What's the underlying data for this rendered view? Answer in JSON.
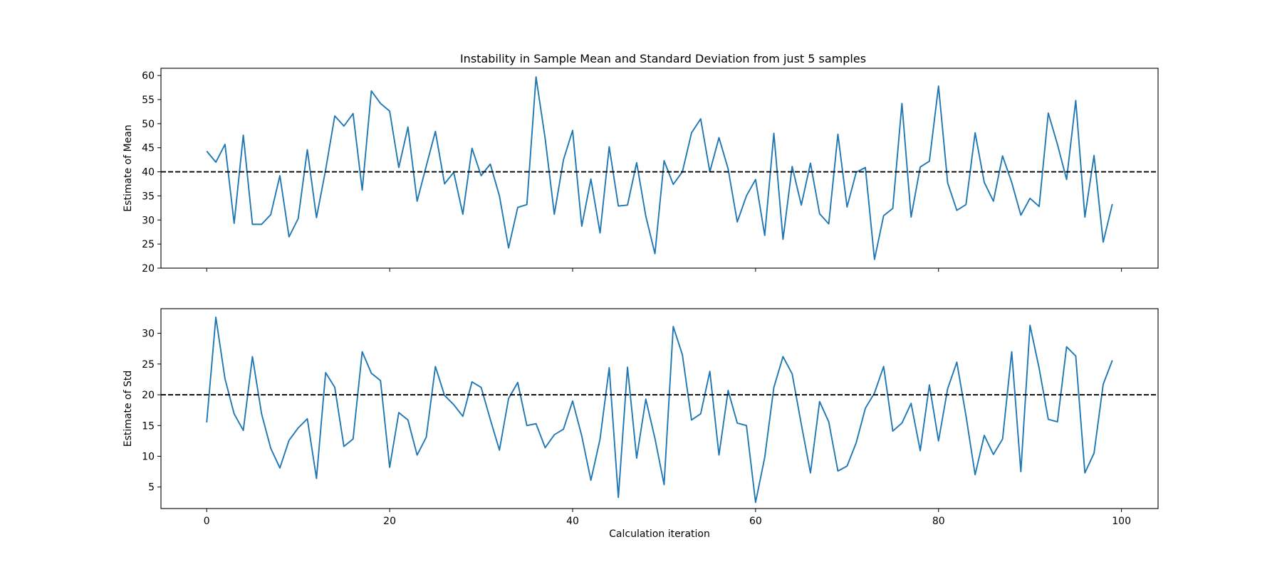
{
  "title": "Instability in Sample Mean and Standard Deviation from just 5 samples",
  "colors": {
    "line": "#1f77b4",
    "reference": "#000000",
    "axes": "#000000",
    "background": "#ffffff"
  },
  "chart_data": [
    {
      "type": "line",
      "title": "Instability in Sample Mean and Standard Deviation from just 5 samples",
      "xlabel": "",
      "ylabel": "Estimate of Mean",
      "xlim": [
        -5,
        104
      ],
      "ylim": [
        20,
        61.5
      ],
      "yticks": [
        20,
        25,
        30,
        35,
        40,
        45,
        50,
        55,
        60
      ],
      "xticks": [
        0,
        20,
        40,
        60,
        80,
        100
      ],
      "show_xtick_labels": false,
      "grid": false,
      "reference_line": {
        "y": 40,
        "style": "dashed",
        "color": "#000000"
      },
      "series": [
        {
          "color": "#1f77b4",
          "values": [
            44.3,
            42.0,
            45.7,
            29.3,
            47.6,
            29.1,
            29.1,
            31.1,
            39.2,
            26.5,
            30.3,
            44.6,
            30.5,
            40.4,
            51.6,
            49.5,
            52.1,
            36.2,
            56.8,
            54.2,
            52.6,
            40.9,
            49.3,
            33.9,
            41.2,
            48.4,
            37.5,
            39.9,
            31.2,
            44.9,
            39.2,
            41.6,
            35.0,
            24.2,
            32.6,
            33.2,
            59.7,
            46.9,
            31.2,
            42.5,
            48.6,
            28.7,
            38.5,
            27.3,
            45.2,
            32.9,
            33.1,
            41.9,
            30.8,
            23.0,
            42.3,
            37.4,
            40.0,
            48.1,
            51.0,
            40.0,
            47.1,
            40.6,
            29.6,
            35.0,
            38.4,
            26.8,
            48.0,
            26.0,
            41.1,
            33.1,
            41.8,
            31.3,
            29.2,
            47.8,
            32.7,
            39.9,
            40.9,
            21.8,
            30.9,
            32.4,
            54.2,
            30.6,
            41.0,
            42.2,
            57.8,
            37.7,
            32.0,
            33.2,
            48.1,
            37.8,
            33.9,
            43.3,
            37.8,
            31.0,
            34.5,
            32.8,
            52.2,
            45.7,
            38.4,
            54.8,
            30.6,
            43.4,
            25.4,
            33.3
          ]
        }
      ]
    },
    {
      "type": "line",
      "xlabel": "Calculation iteration",
      "ylabel": "Estimate of Std",
      "xlim": [
        -5,
        104
      ],
      "ylim": [
        1.5,
        34
      ],
      "yticks": [
        5,
        10,
        15,
        20,
        25,
        30
      ],
      "xticks": [
        0,
        20,
        40,
        60,
        80,
        100
      ],
      "show_xtick_labels": true,
      "grid": false,
      "reference_line": {
        "y": 20,
        "style": "dashed",
        "color": "#000000"
      },
      "series": [
        {
          "color": "#1f77b4",
          "values": [
            15.5,
            32.6,
            22.6,
            16.9,
            14.2,
            26.2,
            16.9,
            11.3,
            8.1,
            12.6,
            14.6,
            16.1,
            6.4,
            23.6,
            21.2,
            11.6,
            12.8,
            27.0,
            23.5,
            22.3,
            8.2,
            17.1,
            15.9,
            10.2,
            13.1,
            24.6,
            19.9,
            18.4,
            16.5,
            22.1,
            21.2,
            16.0,
            11.0,
            19.4,
            22.0,
            15.0,
            15.3,
            11.4,
            13.5,
            14.4,
            19.0,
            13.3,
            6.1,
            12.8,
            24.4,
            3.3,
            24.5,
            9.7,
            19.3,
            12.9,
            5.4,
            31.1,
            26.5,
            15.9,
            16.9,
            23.8,
            10.2,
            20.7,
            15.4,
            15.0,
            2.5,
            9.8,
            21.2,
            26.2,
            23.4,
            15.2,
            7.3,
            18.9,
            15.6,
            7.6,
            8.4,
            12.2,
            17.8,
            20.3,
            24.6,
            14.1,
            15.4,
            18.6,
            10.9,
            21.6,
            12.5,
            21.0,
            25.3,
            16.6,
            7.0,
            13.4,
            10.3,
            12.8,
            27.0,
            7.5,
            31.3,
            24.3,
            16.0,
            15.6,
            27.8,
            26.3,
            7.3,
            10.5,
            21.7,
            25.6
          ]
        }
      ]
    }
  ]
}
